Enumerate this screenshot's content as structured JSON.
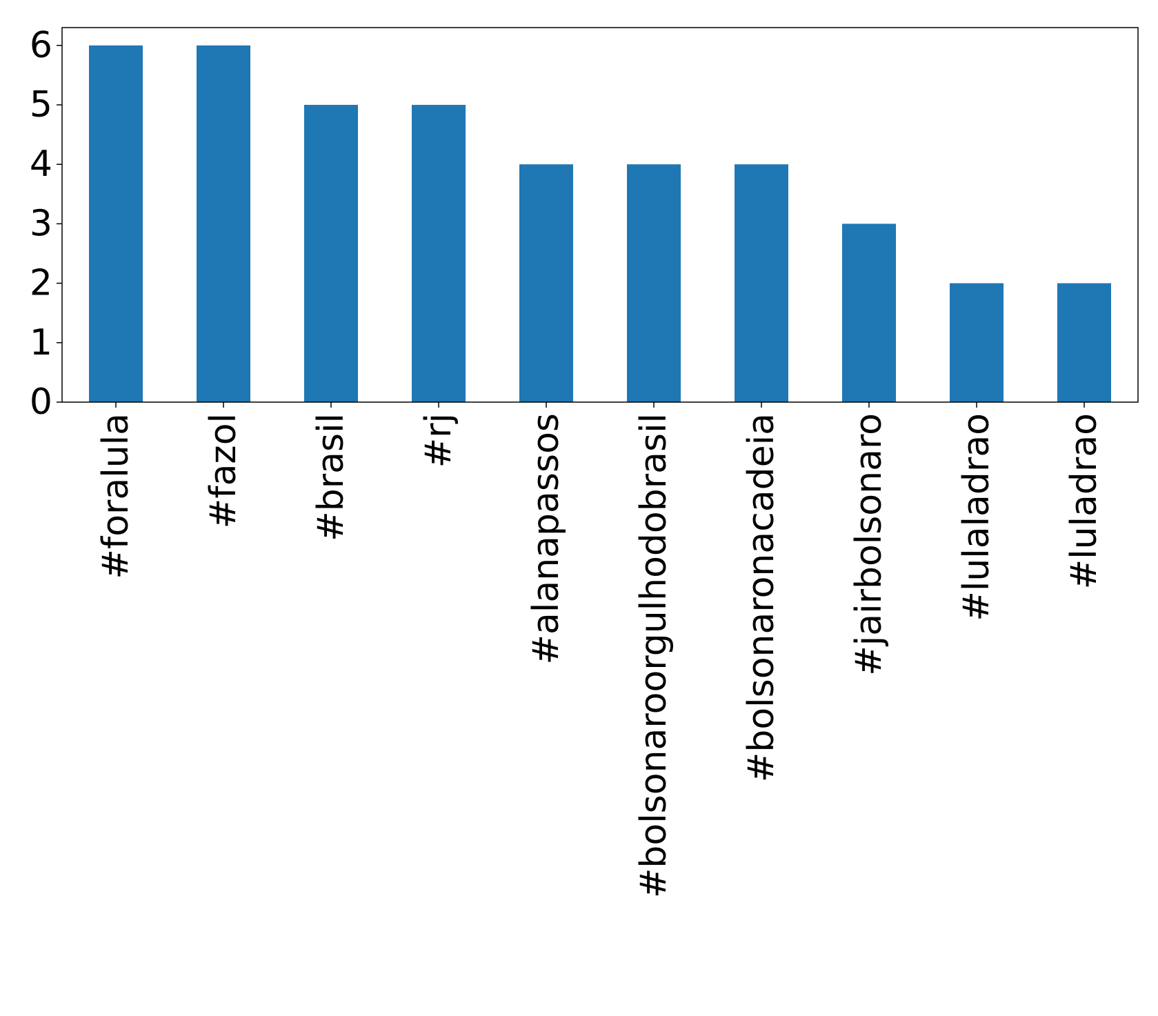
{
  "chart_data": {
    "type": "bar",
    "categories": [
      "#foralula",
      "#fazol",
      "#brasil",
      "#rj",
      "#alanapassos",
      "#bolsonaroorgulhodobrasil",
      "#bolsonaronacadeia",
      "#jairbolsonaro",
      "#lulaladrao",
      "#luladrao"
    ],
    "values": [
      6,
      6,
      5,
      5,
      4,
      4,
      4,
      3,
      2,
      2
    ],
    "yticks": [
      0,
      1,
      2,
      3,
      4,
      5,
      6
    ],
    "ylim": [
      0,
      6.3
    ],
    "title": "",
    "xlabel": "",
    "ylabel": "",
    "grid": false,
    "legend": "none",
    "bar_color": "#1f77b4",
    "xtick_rotation": "vertical"
  }
}
